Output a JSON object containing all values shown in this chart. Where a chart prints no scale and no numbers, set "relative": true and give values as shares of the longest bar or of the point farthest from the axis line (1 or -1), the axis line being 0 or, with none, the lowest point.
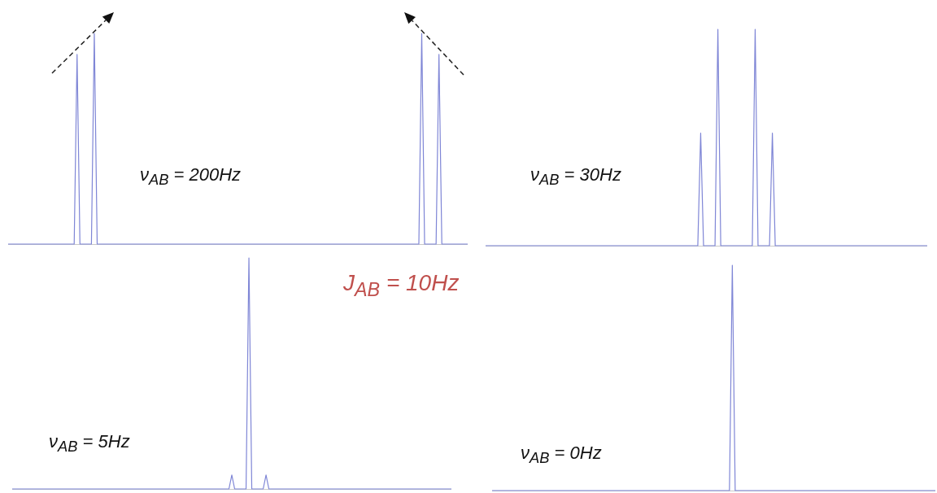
{
  "chart_data": [
    {
      "type": "line",
      "relative": true,
      "annotations": [
        "ν$_{AB}$ = 200Hz"
      ],
      "categories": [
        null,
        null,
        null,
        null,
        null,
        null,
        null,
        null,
        null,
        null,
        null,
        null,
        null,
        null,
        null,
        null,
        null,
        null,
        null,
        null,
        null,
        null,
        null,
        null,
        null,
        null,
        null,
        null,
        null,
        null,
        null,
        null,
        null,
        null,
        null,
        null,
        null,
        null,
        null,
        null,
        null,
        null,
        null,
        null,
        null,
        null,
        null,
        null,
        null,
        null,
        null,
        null,
        null,
        null,
        null,
        null,
        null,
        null,
        null,
        null,
        null,
        null,
        null,
        null,
        null,
        null,
        null,
        null,
        null,
        null,
        null,
        null,
        null,
        null,
        null,
        null,
        null,
        null,
        null,
        null,
        null,
        null,
        null,
        null,
        null,
        null,
        null,
        null,
        null,
        null,
        null,
        null,
        null,
        null,
        null,
        null,
        null,
        null,
        null,
        null,
        null,
        null,
        null,
        null,
        null,
        null,
        null,
        null,
        null,
        null,
        null,
        null,
        null,
        null,
        null,
        null,
        null,
        null,
        null,
        null,
        null,
        null,
        null,
        null,
        null,
        null,
        null,
        null,
        null,
        null,
        null,
        null,
        null,
        null,
        null,
        null,
        null,
        null,
        null,
        null,
        null,
        null,
        null,
        null,
        null,
        null,
        null,
        null,
        null,
        null,
        null,
        null,
        null,
        null,
        null,
        null,
        null,
        null,
        null,
        null,
        null
      ],
      "series": [
        {
          "color": "#7f86d6",
          "values": [
            0,
            0,
            0,
            0,
            0,
            0,
            0,
            0,
            0,
            0,
            0,
            0,
            0,
            0,
            0,
            0,
            0,
            0,
            0,
            0,
            0,
            0,
            0,
            0,
            0.9,
            0,
            0,
            0,
            0,
            0,
            1,
            0,
            0,
            0,
            0,
            0,
            0,
            0,
            0,
            0,
            0,
            0,
            0,
            0,
            0,
            0,
            0,
            0,
            0,
            0,
            0,
            0,
            0,
            0,
            0,
            0,
            0,
            0,
            0,
            0,
            0,
            0,
            0,
            0,
            0,
            0,
            0,
            0,
            0,
            0,
            0,
            0,
            0,
            0,
            0,
            0,
            0,
            0,
            0,
            0,
            0,
            0,
            0,
            0,
            0,
            0,
            0,
            0,
            0,
            0,
            0,
            0,
            0,
            0,
            0,
            0,
            0,
            0,
            0,
            0,
            0,
            0,
            0,
            0,
            0,
            0,
            0,
            0,
            0,
            0,
            0,
            0,
            0,
            0,
            0,
            0,
            0,
            0,
            0,
            0,
            0,
            0,
            0,
            0,
            0,
            0,
            0,
            0,
            0,
            0,
            0,
            0,
            0,
            0,
            0,
            0,
            0,
            0,
            0,
            0,
            0,
            0,
            0,
            0,
            1,
            0,
            0,
            0,
            0,
            0,
            0.9,
            0,
            0,
            0,
            0,
            0,
            0,
            0,
            0,
            0,
            0
          ]
        }
      ]
    },
    {
      "type": "line",
      "relative": true,
      "annotations": [
        "ν$_{AB}$ = 30Hz"
      ],
      "categories": [
        null,
        null,
        null,
        null,
        null,
        null,
        null,
        null,
        null,
        null,
        null,
        null,
        null,
        null,
        null,
        null,
        null,
        null,
        null,
        null,
        null,
        null,
        null,
        null,
        null,
        null,
        null,
        null,
        null,
        null,
        null,
        null,
        null,
        null,
        null,
        null,
        null,
        null,
        null,
        null,
        null,
        null,
        null,
        null,
        null,
        null,
        null,
        null,
        null,
        null,
        null,
        null,
        null,
        null,
        null,
        null,
        null,
        null,
        null,
        null,
        null,
        null,
        null,
        null,
        null,
        null,
        null,
        null,
        null,
        null,
        null,
        null,
        null,
        null,
        null,
        null,
        null,
        null,
        null,
        null,
        null,
        null,
        null,
        null,
        null,
        null,
        null,
        null,
        null,
        null,
        null,
        null,
        null,
        null,
        null,
        null,
        null,
        null,
        null,
        null,
        null,
        null,
        null,
        null,
        null,
        null,
        null,
        null,
        null,
        null,
        null,
        null,
        null,
        null,
        null,
        null,
        null,
        null,
        null,
        null,
        null,
        null,
        null,
        null,
        null,
        null,
        null,
        null,
        null,
        null,
        null,
        null,
        null,
        null,
        null,
        null,
        null,
        null,
        null,
        null,
        null,
        null,
        null,
        null,
        null,
        null,
        null,
        null,
        null,
        null,
        null,
        null,
        null,
        null,
        null
      ],
      "series": [
        {
          "color": "#7f86d6",
          "values": [
            0,
            0,
            0,
            0,
            0,
            0,
            0,
            0,
            0,
            0,
            0,
            0,
            0,
            0,
            0,
            0,
            0,
            0,
            0,
            0,
            0,
            0,
            0,
            0,
            0,
            0,
            0,
            0,
            0,
            0,
            0,
            0,
            0,
            0,
            0,
            0,
            0,
            0,
            0,
            0,
            0,
            0,
            0,
            0,
            0,
            0,
            0,
            0,
            0,
            0,
            0,
            0,
            0,
            0,
            0,
            0,
            0,
            0,
            0,
            0,
            0,
            0,
            0,
            0,
            0,
            0,
            0,
            0,
            0,
            0,
            0,
            0,
            0,
            0,
            0,
            0.52,
            0,
            0,
            0,
            0,
            0,
            1,
            0,
            0,
            0,
            0,
            0,
            0,
            0,
            0,
            0,
            0,
            0,
            0,
            1,
            0,
            0,
            0,
            0,
            0,
            0.52,
            0,
            0,
            0,
            0,
            0,
            0,
            0,
            0,
            0,
            0,
            0,
            0,
            0,
            0,
            0,
            0,
            0,
            0,
            0,
            0,
            0,
            0,
            0,
            0,
            0,
            0,
            0,
            0,
            0,
            0,
            0,
            0,
            0,
            0,
            0,
            0,
            0,
            0,
            0,
            0,
            0,
            0,
            0,
            0,
            0,
            0,
            0,
            0,
            0,
            0,
            0,
            0,
            0,
            0
          ]
        }
      ]
    },
    {
      "type": "line",
      "relative": true,
      "annotations": [
        "ν$_{AB}$ = 5Hz",
        "J$_{AB}$ = 10Hz"
      ],
      "categories": [
        null,
        null,
        null,
        null,
        null,
        null,
        null,
        null,
        null,
        null,
        null,
        null,
        null,
        null,
        null,
        null,
        null,
        null,
        null,
        null,
        null,
        null,
        null,
        null,
        null,
        null,
        null,
        null,
        null,
        null,
        null,
        null,
        null,
        null,
        null,
        null,
        null,
        null,
        null,
        null,
        null,
        null,
        null,
        null,
        null,
        null,
        null,
        null,
        null,
        null,
        null,
        null,
        null,
        null,
        null,
        null,
        null,
        null,
        null,
        null,
        null,
        null,
        null,
        null,
        null,
        null,
        null,
        null,
        null,
        null,
        null,
        null,
        null,
        null,
        null,
        null,
        null,
        null,
        null,
        null,
        null,
        null,
        null,
        null,
        null,
        null,
        null,
        null,
        null,
        null,
        null,
        null,
        null,
        null,
        null,
        null,
        null,
        null,
        null,
        null,
        null,
        null,
        null,
        null,
        null,
        null,
        null,
        null,
        null,
        null,
        null,
        null,
        null,
        null,
        null,
        null,
        null,
        null,
        null,
        null,
        null,
        null,
        null,
        null,
        null,
        null,
        null,
        null,
        null,
        null,
        null,
        null,
        null,
        null,
        null,
        null,
        null,
        null,
        null,
        null,
        null,
        null,
        null,
        null,
        null,
        null,
        null,
        null,
        null,
        null,
        null,
        null,
        null,
        null,
        null
      ],
      "series": [
        {
          "color": "#7f86d6",
          "values": [
            0,
            0,
            0,
            0,
            0,
            0,
            0,
            0,
            0,
            0,
            0,
            0,
            0,
            0,
            0,
            0,
            0,
            0,
            0,
            0,
            0,
            0,
            0,
            0,
            0,
            0,
            0,
            0,
            0,
            0,
            0,
            0,
            0,
            0,
            0,
            0,
            0,
            0,
            0,
            0,
            0,
            0,
            0,
            0,
            0,
            0,
            0,
            0,
            0,
            0,
            0,
            0,
            0,
            0,
            0,
            0,
            0,
            0,
            0,
            0,
            0,
            0,
            0,
            0,
            0,
            0,
            0,
            0,
            0,
            0,
            0,
            0,
            0,
            0,
            0,
            0,
            0,
            0.06,
            0,
            0,
            0,
            0,
            0,
            1,
            0,
            0,
            0,
            0,
            0,
            0.06,
            0,
            0,
            0,
            0,
            0,
            0,
            0,
            0,
            0,
            0,
            0,
            0,
            0,
            0,
            0,
            0,
            0,
            0,
            0,
            0,
            0,
            0,
            0,
            0,
            0,
            0,
            0,
            0,
            0,
            0,
            0,
            0,
            0,
            0,
            0,
            0,
            0,
            0,
            0,
            0,
            0,
            0,
            0,
            0,
            0,
            0,
            0,
            0,
            0,
            0,
            0,
            0,
            0,
            0,
            0,
            0,
            0,
            0,
            0,
            0,
            0,
            0,
            0,
            0,
            0
          ]
        }
      ]
    },
    {
      "type": "line",
      "relative": true,
      "annotations": [
        "ν$_{AB}$ = 0Hz"
      ],
      "categories": [
        null,
        null,
        null,
        null,
        null,
        null,
        null,
        null,
        null,
        null,
        null,
        null,
        null,
        null,
        null,
        null,
        null,
        null,
        null,
        null,
        null,
        null,
        null,
        null,
        null,
        null,
        null,
        null,
        null,
        null,
        null,
        null,
        null,
        null,
        null,
        null,
        null,
        null,
        null,
        null,
        null,
        null,
        null,
        null,
        null,
        null,
        null,
        null,
        null,
        null,
        null,
        null,
        null,
        null,
        null,
        null,
        null,
        null,
        null,
        null,
        null,
        null,
        null,
        null,
        null,
        null,
        null,
        null,
        null,
        null,
        null,
        null,
        null,
        null,
        null,
        null,
        null,
        null,
        null,
        null,
        null,
        null,
        null,
        null,
        null,
        null,
        null,
        null,
        null,
        null,
        null,
        null,
        null,
        null,
        null,
        null,
        null,
        null,
        null,
        null,
        null,
        null,
        null,
        null,
        null,
        null,
        null,
        null,
        null,
        null,
        null,
        null,
        null,
        null,
        null,
        null,
        null,
        null,
        null,
        null,
        null,
        null,
        null,
        null,
        null,
        null,
        null,
        null,
        null,
        null,
        null,
        null,
        null,
        null,
        null,
        null,
        null,
        null,
        null,
        null,
        null,
        null,
        null,
        null,
        null,
        null,
        null,
        null,
        null,
        null,
        null,
        null,
        null,
        null,
        null,
        null
      ],
      "series": [
        {
          "color": "#7f86d6",
          "values": [
            0,
            0,
            0,
            0,
            0,
            0,
            0,
            0,
            0,
            0,
            0,
            0,
            0,
            0,
            0,
            0,
            0,
            0,
            0,
            0,
            0,
            0,
            0,
            0,
            0,
            0,
            0,
            0,
            0,
            0,
            0,
            0,
            0,
            0,
            0,
            0,
            0,
            0,
            0,
            0,
            0,
            0,
            0,
            0,
            0,
            0,
            0,
            0,
            0,
            0,
            0,
            0,
            0,
            0,
            0,
            0,
            0,
            0,
            0,
            0,
            0,
            0,
            0,
            0,
            0,
            0,
            0,
            0,
            0,
            0,
            0,
            0,
            0,
            0,
            0,
            0,
            0,
            0,
            0,
            0,
            0,
            0,
            0,
            0,
            1,
            0,
            0,
            0,
            0,
            0,
            0,
            0,
            0,
            0,
            0,
            0,
            0,
            0,
            0,
            0,
            0,
            0,
            0,
            0,
            0,
            0,
            0,
            0,
            0,
            0,
            0,
            0,
            0,
            0,
            0,
            0,
            0,
            0,
            0,
            0,
            0,
            0,
            0,
            0,
            0,
            0,
            0,
            0,
            0,
            0,
            0,
            0,
            0,
            0,
            0,
            0,
            0,
            0,
            0,
            0,
            0,
            0,
            0,
            0,
            0,
            0,
            0,
            0,
            0,
            0,
            0,
            0,
            0,
            0,
            0,
            0
          ]
        }
      ]
    }
  ]
}
